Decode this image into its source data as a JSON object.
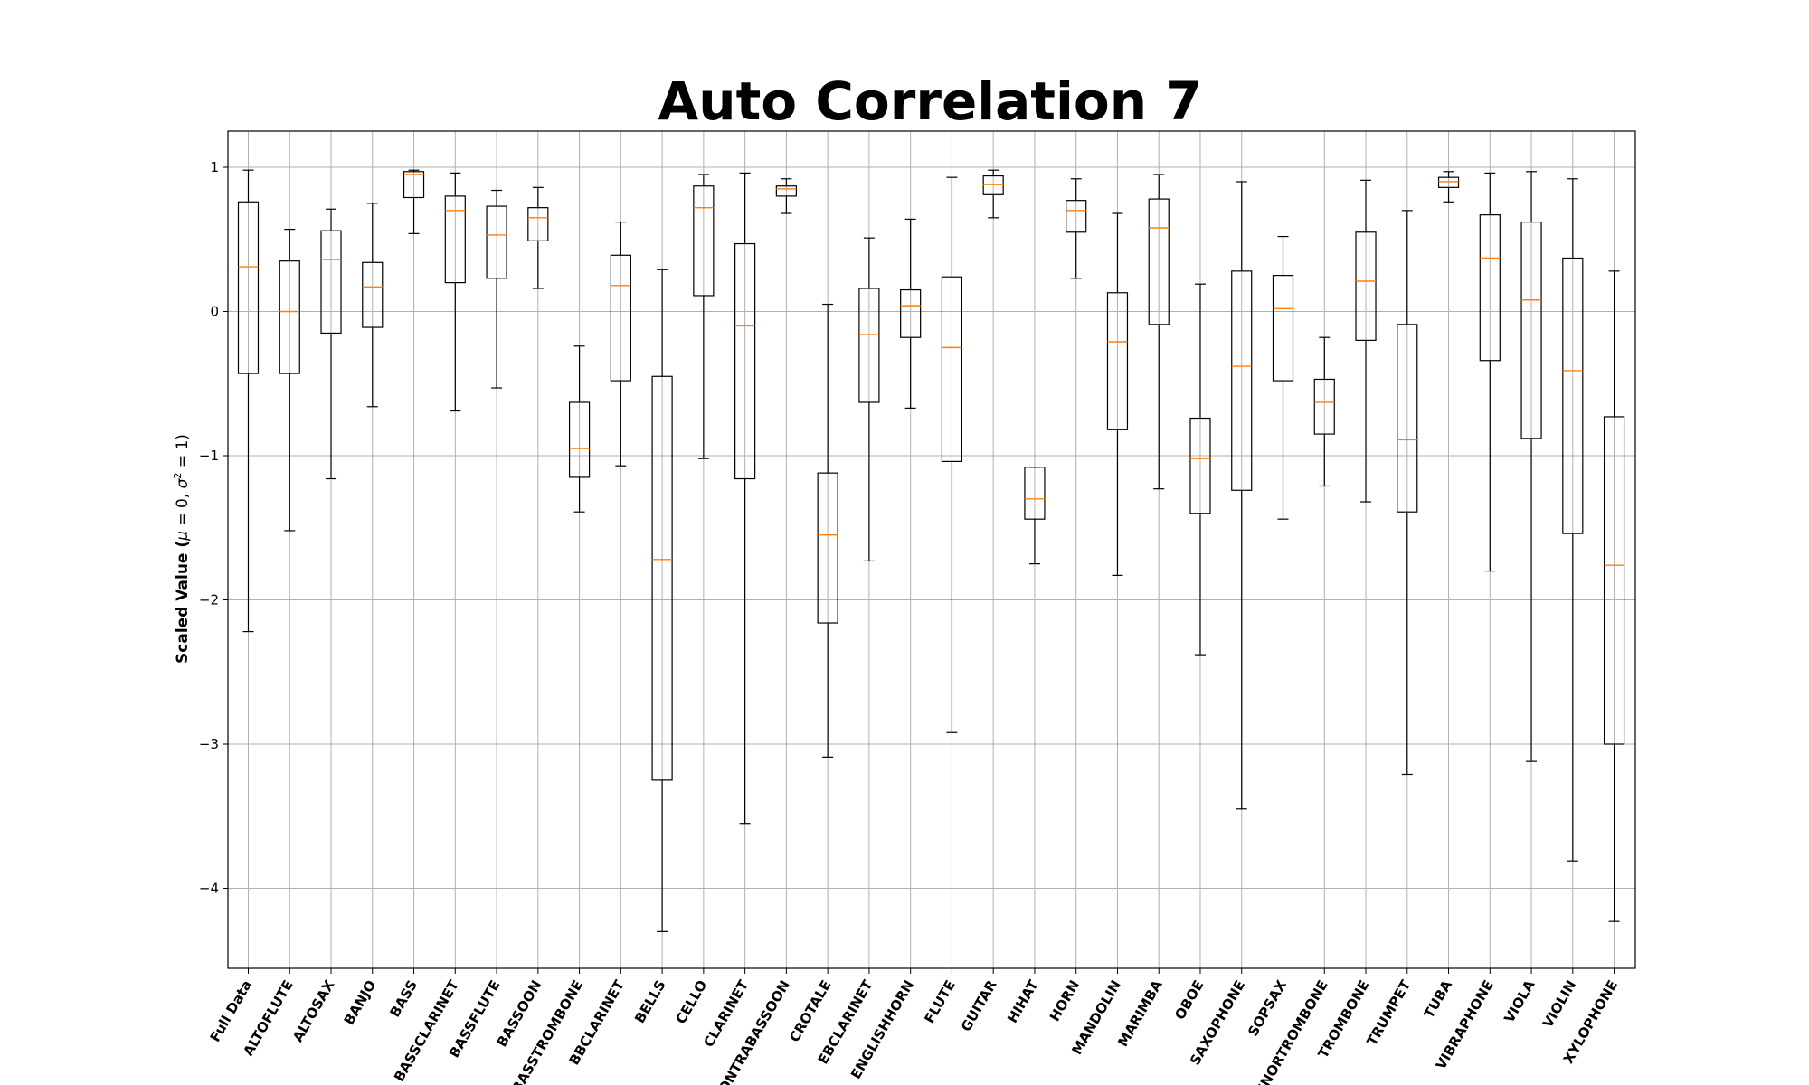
{
  "chart_data": {
    "type": "boxplot",
    "title": "Auto Correlation 7",
    "ylabel_prefix": "Scaled Value (",
    "ylabel_mu": "μ",
    "ylabel_mid": " = 0, ",
    "ylabel_sigma": "σ",
    "ylabel_sup": "2",
    "ylabel_suffix": " = 1)",
    "ylim": [
      -4.55,
      1.25
    ],
    "yticks": [
      1,
      0,
      -1,
      -2,
      -3,
      -4
    ],
    "ytick_labels": [
      "1",
      "0",
      "−1",
      "−2",
      "−3",
      "−4"
    ],
    "grid": true,
    "colors": {
      "box": "#000000",
      "median": "#ff7f0e",
      "grid": "#b0b0b0"
    },
    "categories": [
      "Full Data",
      "ALTOFLUTE",
      "ALTOSAX",
      "BANJO",
      "BASS",
      "BASSCLARINET",
      "BASSFLUTE",
      "BASSOON",
      "BASSTROMBONE",
      "BBCLARINET",
      "BELLS",
      "CELLO",
      "CLARINET",
      "CONTRABASSOON",
      "CROTALE",
      "EBCLARINET",
      "ENGLISHHORN",
      "FLUTE",
      "GUITAR",
      "HIHAT",
      "HORN",
      "MANDOLIN",
      "MARIMBA",
      "OBOE",
      "SAXOPHONE",
      "SOPSAX",
      "TENORTROMBONE",
      "TROMBONE",
      "TRUMPET",
      "TUBA",
      "VIBRAPHONE",
      "VIOLA",
      "VIOLIN",
      "XYLOPHONE"
    ],
    "boxes": [
      {
        "whislo": -2.22,
        "q1": -0.43,
        "med": 0.31,
        "q3": 0.76,
        "whishi": 0.98
      },
      {
        "whislo": -1.52,
        "q1": -0.43,
        "med": 0.0,
        "q3": 0.35,
        "whishi": 0.57
      },
      {
        "whislo": -1.16,
        "q1": -0.15,
        "med": 0.36,
        "q3": 0.56,
        "whishi": 0.71
      },
      {
        "whislo": -0.66,
        "q1": -0.11,
        "med": 0.17,
        "q3": 0.34,
        "whishi": 0.75
      },
      {
        "whislo": 0.54,
        "q1": 0.79,
        "med": 0.95,
        "q3": 0.97,
        "whishi": 0.98
      },
      {
        "whislo": -0.69,
        "q1": 0.2,
        "med": 0.7,
        "q3": 0.8,
        "whishi": 0.96
      },
      {
        "whislo": -0.53,
        "q1": 0.23,
        "med": 0.53,
        "q3": 0.73,
        "whishi": 0.84
      },
      {
        "whislo": 0.16,
        "q1": 0.49,
        "med": 0.65,
        "q3": 0.72,
        "whishi": 0.86
      },
      {
        "whislo": -1.39,
        "q1": -1.15,
        "med": -0.95,
        "q3": -0.63,
        "whishi": -0.24
      },
      {
        "whislo": -1.07,
        "q1": -0.48,
        "med": 0.18,
        "q3": 0.39,
        "whishi": 0.62
      },
      {
        "whislo": -4.3,
        "q1": -3.25,
        "med": -1.72,
        "q3": -0.45,
        "whishi": 0.29
      },
      {
        "whislo": -1.02,
        "q1": 0.11,
        "med": 0.72,
        "q3": 0.87,
        "whishi": 0.95
      },
      {
        "whislo": -3.55,
        "q1": -1.16,
        "med": -0.1,
        "q3": 0.47,
        "whishi": 0.96
      },
      {
        "whislo": 0.68,
        "q1": 0.8,
        "med": 0.85,
        "q3": 0.87,
        "whishi": 0.92
      },
      {
        "whislo": -3.09,
        "q1": -2.16,
        "med": -1.55,
        "q3": -1.12,
        "whishi": 0.05
      },
      {
        "whislo": -1.73,
        "q1": -0.63,
        "med": -0.16,
        "q3": 0.16,
        "whishi": 0.51
      },
      {
        "whislo": -0.67,
        "q1": -0.18,
        "med": 0.04,
        "q3": 0.15,
        "whishi": 0.64
      },
      {
        "whislo": -2.92,
        "q1": -1.04,
        "med": -0.25,
        "q3": 0.24,
        "whishi": 0.93
      },
      {
        "whislo": 0.65,
        "q1": 0.81,
        "med": 0.88,
        "q3": 0.94,
        "whishi": 0.98
      },
      {
        "whislo": -1.75,
        "q1": -1.44,
        "med": -1.3,
        "q3": -1.08,
        "whishi": -1.08
      },
      {
        "whislo": 0.23,
        "q1": 0.55,
        "med": 0.7,
        "q3": 0.77,
        "whishi": 0.92
      },
      {
        "whislo": -1.83,
        "q1": -0.82,
        "med": -0.21,
        "q3": 0.13,
        "whishi": 0.68
      },
      {
        "whislo": -1.23,
        "q1": -0.09,
        "med": 0.58,
        "q3": 0.78,
        "whishi": 0.95
      },
      {
        "whislo": -2.38,
        "q1": -1.4,
        "med": -1.02,
        "q3": -0.74,
        "whishi": 0.19
      },
      {
        "whislo": -3.45,
        "q1": -1.24,
        "med": -0.38,
        "q3": 0.28,
        "whishi": 0.9
      },
      {
        "whislo": -1.44,
        "q1": -0.48,
        "med": 0.02,
        "q3": 0.25,
        "whishi": 0.52
      },
      {
        "whislo": -1.21,
        "q1": -0.85,
        "med": -0.63,
        "q3": -0.47,
        "whishi": -0.18
      },
      {
        "whislo": -1.32,
        "q1": -0.2,
        "med": 0.21,
        "q3": 0.55,
        "whishi": 0.91
      },
      {
        "whislo": -3.21,
        "q1": -1.39,
        "med": -0.89,
        "q3": -0.09,
        "whishi": 0.7
      },
      {
        "whislo": 0.76,
        "q1": 0.86,
        "med": 0.9,
        "q3": 0.93,
        "whishi": 0.97
      },
      {
        "whislo": -1.8,
        "q1": -0.34,
        "med": 0.37,
        "q3": 0.67,
        "whishi": 0.96
      },
      {
        "whislo": -3.12,
        "q1": -0.88,
        "med": 0.08,
        "q3": 0.62,
        "whishi": 0.97
      },
      {
        "whislo": -3.81,
        "q1": -1.54,
        "med": -0.41,
        "q3": 0.37,
        "whishi": 0.92
      },
      {
        "whislo": -4.23,
        "q1": -3.0,
        "med": -1.76,
        "q3": -0.73,
        "whishi": 0.28
      }
    ]
  }
}
